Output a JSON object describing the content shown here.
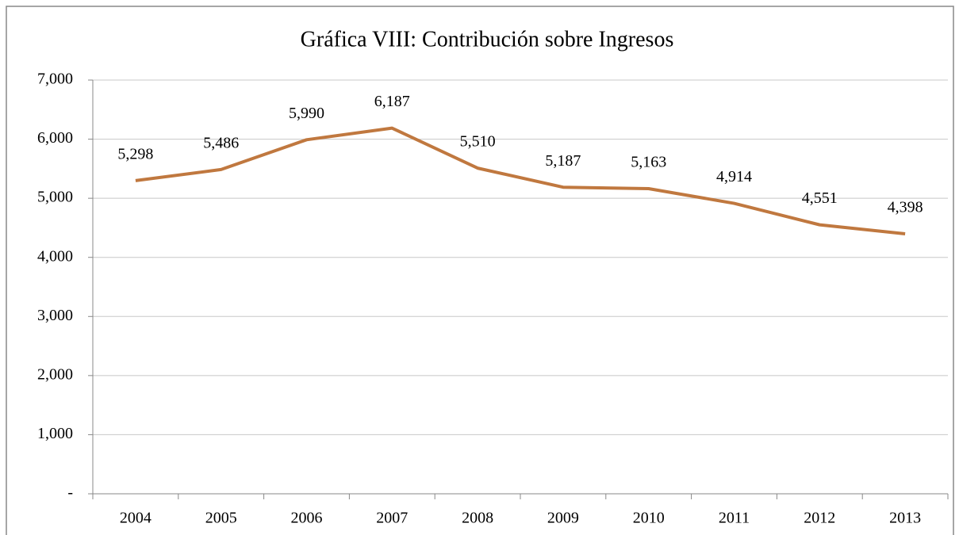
{
  "chart_data": {
    "type": "line",
    "title": "Gráfica VIII: Contribución sobre Ingresos",
    "categories": [
      "2004",
      "2005",
      "2006",
      "2007",
      "2008",
      "2009",
      "2010",
      "2011",
      "2012",
      "2013"
    ],
    "series": [
      {
        "name": "Contribución sobre Ingresos",
        "color": "#c0783f",
        "values": [
          5298,
          5486,
          5990,
          6187,
          5510,
          5187,
          5163,
          4914,
          4551,
          4398
        ],
        "value_labels": [
          "5,298",
          "5,486",
          "5,990",
          "6,187",
          "5,510",
          "5,187",
          "5,163",
          "4,914",
          "4,551",
          "4,398"
        ]
      }
    ],
    "ylim": [
      0,
      7000
    ],
    "yticks": [
      {
        "value": 0,
        "label": "-"
      },
      {
        "value": 1000,
        "label": "1,000"
      },
      {
        "value": 2000,
        "label": "2,000"
      },
      {
        "value": 3000,
        "label": "3,000"
      },
      {
        "value": 4000,
        "label": "4,000"
      },
      {
        "value": 5000,
        "label": "5,000"
      },
      {
        "value": 6000,
        "label": "6,000"
      },
      {
        "value": 7000,
        "label": "7,000"
      }
    ],
    "grid": true
  }
}
